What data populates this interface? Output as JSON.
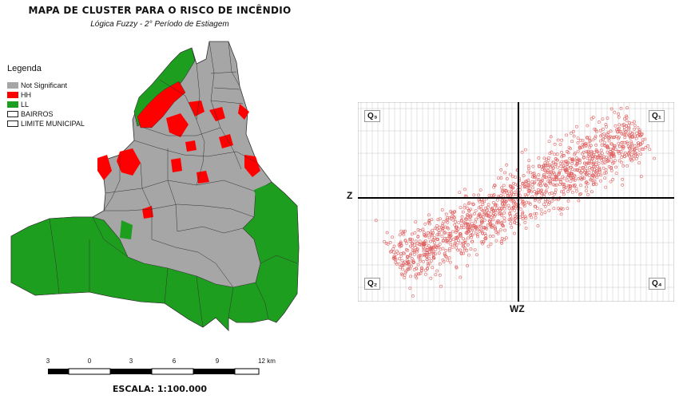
{
  "map": {
    "title": "MAPA DE CLUSTER PARA O RISCO DE INCÊNDIO",
    "subtitle": "Lógica Fuzzy - 2° Período de Estiagem",
    "legend": {
      "title": "Legenda",
      "items": [
        {
          "label": "Not Significant",
          "color": "#a6a6a6"
        },
        {
          "label": "HH",
          "color": "#ff0000"
        },
        {
          "label": "LL",
          "color": "#1e9e1e"
        },
        {
          "label": "BAIRROS",
          "color": "#ffffff"
        },
        {
          "label": "LIMITE MUNICIPAL",
          "color": "#ffffff"
        }
      ]
    },
    "scale_bar": {
      "labels": [
        "3",
        "0",
        "3",
        "6",
        "9",
        "12 km"
      ],
      "title": "ESCALA: 1:100.000"
    }
  },
  "scatter": {
    "quadrants": [
      "Q₃",
      "Q₁",
      "Q₂",
      "Q₄"
    ],
    "xlabel": "WZ",
    "ylabel": "Z",
    "point_color": "#e06060"
  },
  "chart_data": {
    "type": "scatter",
    "xlabel": "WZ",
    "ylabel": "Z",
    "xlim": [
      -2.1,
      2.1
    ],
    "ylim": [
      -2.1,
      2.1
    ],
    "grid": true,
    "description_points": "dense cloud along positive diagonal",
    "trend": {
      "slope": 1.0,
      "intercept": 0.0
    }
  }
}
